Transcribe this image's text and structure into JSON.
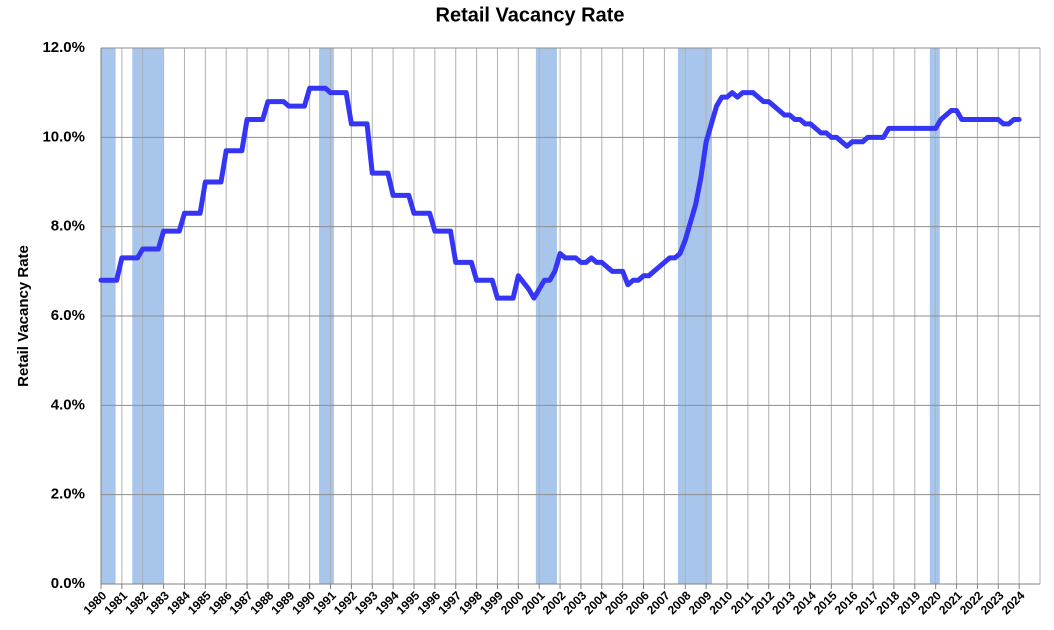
{
  "chart_data": {
    "type": "line",
    "title": "Retail Vacancy Rate",
    "y_label": "Retail Vacancy Rate",
    "x": [
      1980,
      1980.75,
      1981,
      1981.75,
      1982,
      1982.75,
      1983,
      1983.75,
      1984,
      1984.75,
      1985,
      1985.75,
      1986,
      1986.75,
      1987,
      1987.75,
      1988,
      1988.75,
      1989,
      1989.75,
      1990,
      1990.75,
      1991,
      1991.75,
      1992,
      1992.75,
      1993,
      1993.75,
      1994,
      1994.75,
      1995,
      1995.75,
      1996,
      1996.75,
      1997,
      1997.75,
      1998,
      1998.75,
      1999,
      1999.75,
      2000,
      2000.5,
      2000.75,
      2001.25,
      2001.5,
      2001.75,
      2002,
      2002.25,
      2002.75,
      2003,
      2003.25,
      2003.5,
      2003.75,
      2004,
      2004.25,
      2004.5,
      2005,
      2005.25,
      2005.5,
      2005.75,
      2006,
      2006.25,
      2006.5,
      2006.75,
      2007,
      2007.25,
      2007.5,
      2007.75,
      2008,
      2008.25,
      2008.5,
      2008.75,
      2009,
      2009.25,
      2009.5,
      2009.75,
      2010,
      2010.25,
      2010.5,
      2010.75,
      2011,
      2011.25,
      2011.5,
      2011.75,
      2012,
      2012.25,
      2012.5,
      2012.75,
      2013,
      2013.25,
      2013.5,
      2013.75,
      2014,
      2014.25,
      2014.5,
      2014.75,
      2015,
      2015.25,
      2015.5,
      2015.75,
      2016,
      2016.25,
      2016.5,
      2016.75,
      2017,
      2017.5,
      2017.75,
      2018,
      2019,
      2020,
      2020.25,
      2020.5,
      2020.75,
      2021,
      2021.25,
      2022,
      2023,
      2023.25,
      2023.5,
      2023.75,
      2024
    ],
    "series": [
      {
        "name": "Retail Vacancy Rate",
        "color": "#3535f5",
        "values": [
          6.8,
          6.8,
          7.3,
          7.3,
          7.5,
          7.5,
          7.9,
          7.9,
          8.3,
          8.3,
          9.0,
          9.0,
          9.7,
          9.7,
          10.4,
          10.4,
          10.8,
          10.8,
          10.7,
          10.7,
          11.1,
          11.1,
          11.0,
          11.0,
          10.3,
          10.3,
          9.2,
          9.2,
          8.7,
          8.7,
          8.3,
          8.3,
          7.9,
          7.9,
          7.2,
          7.2,
          6.8,
          6.8,
          6.4,
          6.4,
          6.9,
          6.6,
          6.4,
          6.8,
          6.8,
          7.0,
          7.4,
          7.3,
          7.3,
          7.2,
          7.2,
          7.3,
          7.2,
          7.2,
          7.1,
          7.0,
          7.0,
          6.7,
          6.8,
          6.8,
          6.9,
          6.9,
          7.0,
          7.1,
          7.2,
          7.3,
          7.3,
          7.4,
          7.7,
          8.1,
          8.5,
          9.1,
          9.9,
          10.3,
          10.7,
          10.9,
          10.9,
          11.0,
          10.9,
          11.0,
          11.0,
          11.0,
          10.9,
          10.8,
          10.8,
          10.7,
          10.6,
          10.5,
          10.5,
          10.4,
          10.4,
          10.3,
          10.3,
          10.2,
          10.1,
          10.1,
          10.0,
          10.0,
          9.9,
          9.8,
          9.9,
          9.9,
          9.9,
          10.0,
          10.0,
          10.0,
          10.2,
          10.2,
          10.2,
          10.2,
          10.4,
          10.5,
          10.6,
          10.6,
          10.4,
          10.4,
          10.4,
          10.3,
          10.3,
          10.4,
          10.4
        ]
      }
    ],
    "recessions": [
      [
        1980,
        1980.7
      ],
      [
        1981.5,
        1982.97
      ],
      [
        1990.45,
        1991.16
      ],
      [
        2000.84,
        2001.85
      ],
      [
        2007.65,
        2009.28
      ],
      [
        2019.72,
        2020.2
      ]
    ],
    "recession_color": "#a8c6ec",
    "xlim": [
      1980,
      2025
    ],
    "xticks": [
      1980,
      1981,
      1982,
      1983,
      1984,
      1985,
      1986,
      1987,
      1988,
      1989,
      1990,
      1991,
      1992,
      1993,
      1994,
      1995,
      1996,
      1997,
      1998,
      1999,
      2000,
      2001,
      2002,
      2003,
      2004,
      2005,
      2006,
      2007,
      2008,
      2009,
      2010,
      2011,
      2012,
      2013,
      2014,
      2015,
      2016,
      2017,
      2018,
      2019,
      2020,
      2021,
      2022,
      2023,
      2024
    ],
    "ylim": [
      0,
      12
    ],
    "yticks": [
      {
        "value": 0,
        "label": "0.0%"
      },
      {
        "value": 2,
        "label": "2.0%"
      },
      {
        "value": 4,
        "label": "4.0%"
      },
      {
        "value": 6,
        "label": "6.0%"
      },
      {
        "value": 8,
        "label": "8.0%"
      },
      {
        "value": 10,
        "label": "10.0%"
      },
      {
        "value": 12,
        "label": "12.0%"
      }
    ],
    "grid": true
  }
}
